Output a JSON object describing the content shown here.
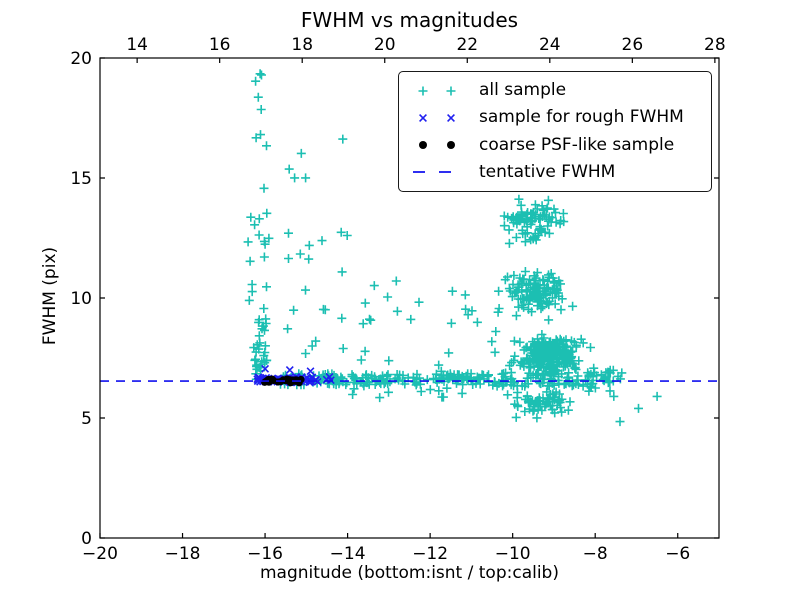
{
  "chart_data": {
    "type": "scatter",
    "title": "FWHM vs magnitudes",
    "xlabel": "magnitude (bottom:isnt / top:calib)",
    "ylabel": "FWHM (pix)",
    "grid": false,
    "x_axis_bottom": {
      "range": [
        -20,
        -5
      ],
      "tick_values": [
        -20,
        -18,
        -16,
        -14,
        -12,
        -10,
        -8,
        -6
      ],
      "tick_labels": [
        "−20",
        "−18",
        "−16",
        "−14",
        "−12",
        "−10",
        "−8",
        "−6"
      ]
    },
    "x_axis_top": {
      "range": [
        13.1,
        28.1
      ],
      "tick_values": [
        14,
        16,
        18,
        20,
        22,
        24,
        26,
        28
      ],
      "tick_labels": [
        "14",
        "16",
        "18",
        "20",
        "22",
        "24",
        "26",
        "28"
      ]
    },
    "y_axis": {
      "range": [
        0,
        20
      ],
      "tick_values": [
        0,
        5,
        10,
        15,
        20
      ],
      "tick_labels": [
        "0",
        "5",
        "10",
        "15",
        "20"
      ]
    },
    "legend": {
      "position": "upper right",
      "items": [
        {
          "label": "all sample",
          "marker": "plus",
          "color": "#1cbfb2"
        },
        {
          "label": "sample for rough FWHM",
          "marker": "cross",
          "color": "#2020f0"
        },
        {
          "label": "coarse PSF-like sample",
          "marker": "dot",
          "color": "#000000"
        },
        {
          "label": "tentative FWHM",
          "marker": "dashed-line",
          "color": "#1111ee"
        }
      ]
    },
    "tentative_line": {
      "name": "tentative FWHM",
      "style": "dashed",
      "color": "#1111ee",
      "y": 6.54,
      "x_span": [
        -20,
        -5
      ]
    },
    "series": [
      {
        "name": "all sample",
        "marker": "plus",
        "color": "#1cbfb2",
        "clusters": [
          {
            "region": "left column low",
            "mag": [
              -16.28,
              -15.95
            ],
            "fwhm": [
              6.6,
              9.2
            ],
            "count": 30,
            "dist": "u"
          },
          {
            "region": "left column mid",
            "mag": [
              -16.45,
              -15.85
            ],
            "fwhm": [
              9.2,
              13.6
            ],
            "count": 16,
            "dist": "u"
          },
          {
            "region": "left column high",
            "mag": [
              -16.25,
              -15.75
            ],
            "fwhm": [
              13.6,
              19.4
            ],
            "count": 9,
            "dist": "u"
          },
          {
            "region": "second column",
            "mag": [
              -15.5,
              -13.95
            ],
            "fwhm": [
              7.0,
              17.8
            ],
            "count": 24,
            "dist": "u"
          },
          {
            "region": "band left",
            "mag": [
              -15.65,
              -10.6
            ],
            "fwhm": [
              6.38,
              6.85
            ],
            "count": 170,
            "dist": "u"
          },
          {
            "region": "band right",
            "mag": [
              -10.6,
              -7.6
            ],
            "fwhm": [
              6.3,
              6.9
            ],
            "count": 90,
            "dist": "u"
          },
          {
            "region": "above band",
            "mag": [
              -13.7,
              -10.4
            ],
            "fwhm": [
              6.9,
              10.8
            ],
            "count": 26,
            "dist": "u"
          },
          {
            "region": "below band",
            "mag": [
              -13.9,
              -10.7
            ],
            "fwhm": [
              5.6,
              6.35
            ],
            "count": 12,
            "dist": "u"
          },
          {
            "region": "cloud top",
            "mag": [
              -10.7,
              -8.3
            ],
            "fwhm": [
              11.8,
              14.7
            ],
            "count": 85,
            "dist": "g"
          },
          {
            "region": "cloud mid",
            "mag": [
              -10.7,
              -8.1
            ],
            "fwhm": [
              8.8,
              11.8
            ],
            "count": 130,
            "dist": "g"
          },
          {
            "region": "cloud core",
            "mag": [
              -10.3,
              -7.9
            ],
            "fwhm": [
              6.5,
              8.8
            ],
            "count": 240,
            "dist": "g"
          },
          {
            "region": "cloud below",
            "mag": [
              -10.5,
              -8.1
            ],
            "fwhm": [
              4.9,
              6.4
            ],
            "count": 65,
            "dist": "g"
          },
          {
            "region": "right trail",
            "mag": [
              -8.2,
              -7.3
            ],
            "fwhm": [
              6.1,
              7.2
            ],
            "count": 22,
            "dist": "u"
          },
          {
            "region": "right outliers",
            "points": [
              [
                -7.55,
                5.9
              ],
              [
                -7.4,
                4.85
              ],
              [
                -6.95,
                5.4
              ],
              [
                -6.5,
                5.9
              ]
            ]
          }
        ]
      },
      {
        "name": "sample for rough FWHM",
        "marker": "cross",
        "color": "#2020f0",
        "clusters": [
          {
            "region": "on line cluster",
            "mag": [
              -16.2,
              -14.4
            ],
            "fwhm": [
              6.48,
              6.72
            ],
            "count": 55,
            "dist": "u"
          },
          {
            "region": "slightly above line",
            "points": [
              [
                -16.0,
                7.05
              ],
              [
                -15.4,
                7.0
              ],
              [
                -14.9,
                6.95
              ]
            ]
          }
        ]
      },
      {
        "name": "coarse PSF-like sample",
        "marker": "dot",
        "color": "#000000",
        "clusters": [
          {
            "region": "dark bar",
            "mag": [
              -16.12,
              -15.08
            ],
            "fwhm": [
              6.45,
              6.62
            ],
            "count": 26,
            "dist": "u"
          }
        ]
      }
    ]
  }
}
